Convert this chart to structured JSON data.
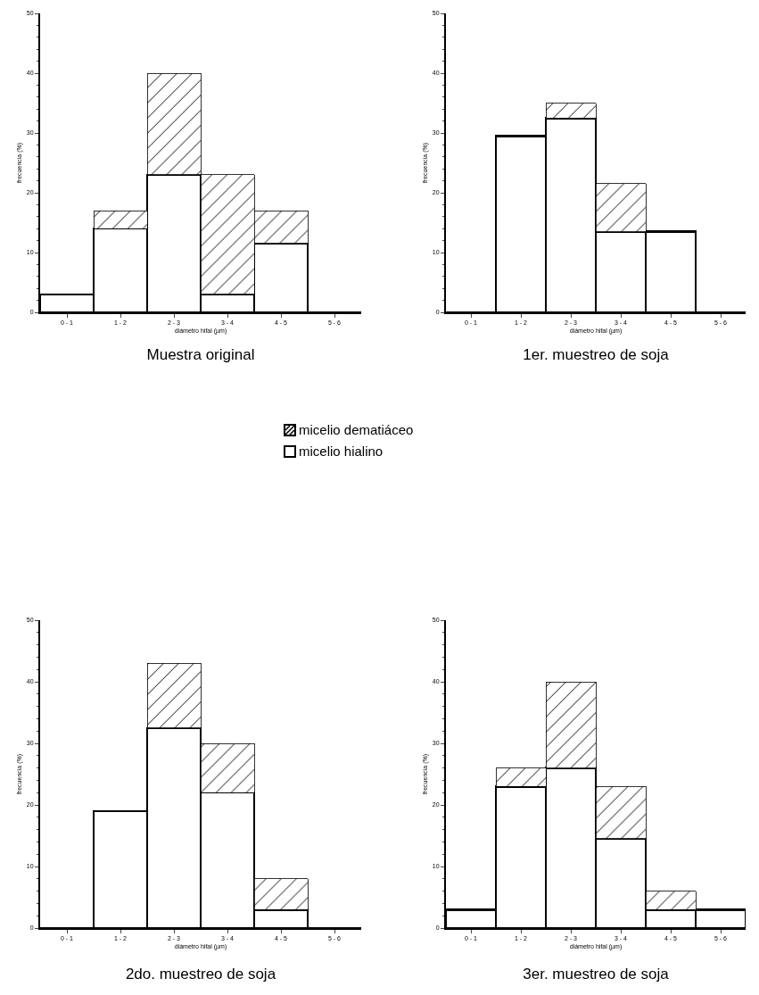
{
  "chart_data": [
    {
      "type": "bar",
      "title": "Muestra original",
      "xlabel": "diámetro hifal (µm)",
      "ylabel": "frecuencia (%)",
      "categories": [
        "0 - 1",
        "1 - 2",
        "2 - 3",
        "3 - 4",
        "4 - 5",
        "5 - 6"
      ],
      "stacked": true,
      "ylim": [
        0,
        50
      ],
      "yticks": [
        0,
        10,
        20,
        30,
        40,
        50
      ],
      "legend": "bottom",
      "series": [
        {
          "name": "micelio hialino",
          "color": "#ffffff",
          "values": [
            3,
            14,
            23,
            3,
            11.5,
            0
          ]
        },
        {
          "name": "micelio dematiáceo",
          "color": "#000000",
          "values": [
            0,
            3,
            17,
            20,
            5.5,
            0
          ]
        }
      ]
    },
    {
      "type": "bar",
      "title": "1er. muestreo de soja",
      "xlabel": "diámetro hifal (µm)",
      "ylabel": "frecuencia (%)",
      "categories": [
        "0 - 1",
        "1 - 2",
        "2 - 3",
        "3 - 4",
        "4 - 5",
        "5 - 6"
      ],
      "stacked": true,
      "ylim": [
        0,
        50
      ],
      "yticks": [
        0,
        10,
        20,
        30,
        40,
        50
      ],
      "series": [
        {
          "color": "#ffffff",
          "values": [
            0,
            29.5,
            32.5,
            13.5,
            13.5,
            0
          ]
        },
        {
          "color": "#000000",
          "values": [
            0,
            0,
            2.5,
            8,
            0,
            0
          ]
        }
      ]
    },
    {
      "type": "bar",
      "title": "2do. muestreo de soja",
      "xlabel": "diámetro hifal (µm)",
      "ylabel": "frecuencia (%)",
      "categories": [
        "0 - 1",
        "1 - 2",
        "2 - 3",
        "3 - 4",
        "4 - 5",
        "5 - 6"
      ],
      "stacked": true,
      "ylim": [
        0,
        50
      ],
      "yticks": [
        0,
        10,
        20,
        30,
        40,
        50
      ],
      "series": [
        {
          "color": "#ffffff",
          "values": [
            0,
            19,
            32.5,
            22,
            3,
            0
          ]
        },
        {
          "color": "#000000",
          "values": [
            0,
            0,
            10.5,
            8,
            5,
            0
          ]
        }
      ]
    },
    {
      "type": "bar",
      "title": "3er. muestreo de soja",
      "xlabel": "diámetro hifal (µm)",
      "ylabel": "frecuencia (%)",
      "categories": [
        "0 - 1",
        "1 - 2",
        "2 - 3",
        "3 - 4",
        "4 - 5",
        "5 - 6"
      ],
      "stacked": true,
      "ylim": [
        0,
        50
      ],
      "yticks": [
        0,
        10,
        20,
        30,
        40,
        50
      ],
      "series": [
        {
          "color": "#ffffff",
          "values": [
            3,
            23,
            26,
            14.5,
            3,
            3
          ]
        },
        {
          "color": "#000000",
          "values": [
            0,
            3,
            14,
            8.5,
            3,
            0
          ]
        }
      ]
    }
  ]
}
